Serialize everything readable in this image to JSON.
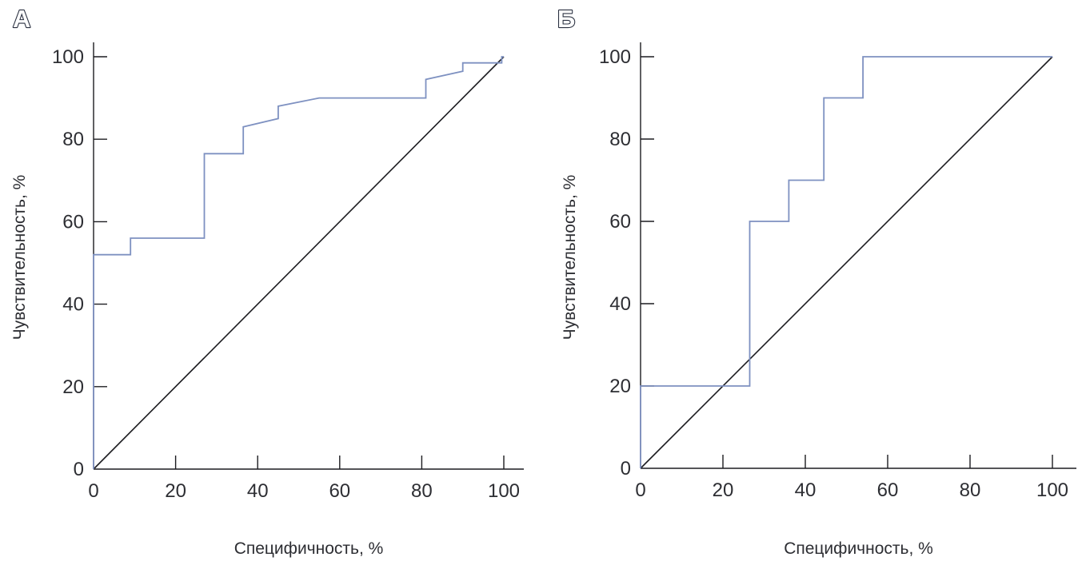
{
  "panels": [
    {
      "label": "А",
      "x_axis_title": "Специфичность, %",
      "y_axis_title": "Чувствительность, %"
    },
    {
      "label": "Б",
      "x_axis_title": "Специфичность, %",
      "y_axis_title": "Чувствительность, %"
    }
  ],
  "colors": {
    "curve": "#7e91c1",
    "diagonal": "#1c1c20",
    "axis": "#1c1c20",
    "text": "#2d2e33",
    "panel_label_fill": "#ffffff",
    "panel_label_outline": "#2a3040"
  },
  "chart_data": [
    {
      "type": "line",
      "panel_label": "А",
      "xlabel": "Специфичность, %",
      "ylabel": "Чувствительность, %",
      "xlim": [
        0,
        100
      ],
      "ylim": [
        0,
        100
      ],
      "x_ticks": [
        0,
        20,
        40,
        60,
        80,
        100
      ],
      "y_ticks": [
        0,
        20,
        40,
        60,
        80,
        100
      ],
      "grid": false,
      "legend": false,
      "roc_points": [
        [
          0,
          0
        ],
        [
          0,
          52
        ],
        [
          9,
          52
        ],
        [
          9,
          56
        ],
        [
          27,
          56
        ],
        [
          27,
          76.5
        ],
        [
          36.5,
          76.5
        ],
        [
          36.5,
          83
        ],
        [
          45,
          85
        ],
        [
          45,
          88
        ],
        [
          55,
          90
        ],
        [
          81,
          90
        ],
        [
          81,
          94.5
        ],
        [
          90,
          96.5
        ],
        [
          90,
          98.5
        ],
        [
          99.5,
          98.5
        ],
        [
          99.5,
          100
        ],
        [
          100,
          100
        ]
      ],
      "reference_line": [
        [
          0,
          0
        ],
        [
          100,
          100
        ]
      ]
    },
    {
      "type": "line",
      "panel_label": "Б",
      "xlabel": "Специфичность, %",
      "ylabel": "Чувствительность, %",
      "xlim": [
        0,
        100
      ],
      "ylim": [
        0,
        100
      ],
      "x_ticks": [
        0,
        20,
        40,
        60,
        80,
        100
      ],
      "y_ticks": [
        0,
        20,
        40,
        60,
        80,
        100
      ],
      "grid": false,
      "legend": false,
      "roc_points": [
        [
          0,
          0
        ],
        [
          0,
          20
        ],
        [
          26.5,
          20
        ],
        [
          26.5,
          60
        ],
        [
          36,
          60
        ],
        [
          36,
          70
        ],
        [
          44.5,
          70
        ],
        [
          44.5,
          90
        ],
        [
          54,
          90
        ],
        [
          54,
          100
        ],
        [
          100,
          100
        ]
      ],
      "reference_line": [
        [
          0,
          0
        ],
        [
          100,
          100
        ]
      ]
    }
  ]
}
